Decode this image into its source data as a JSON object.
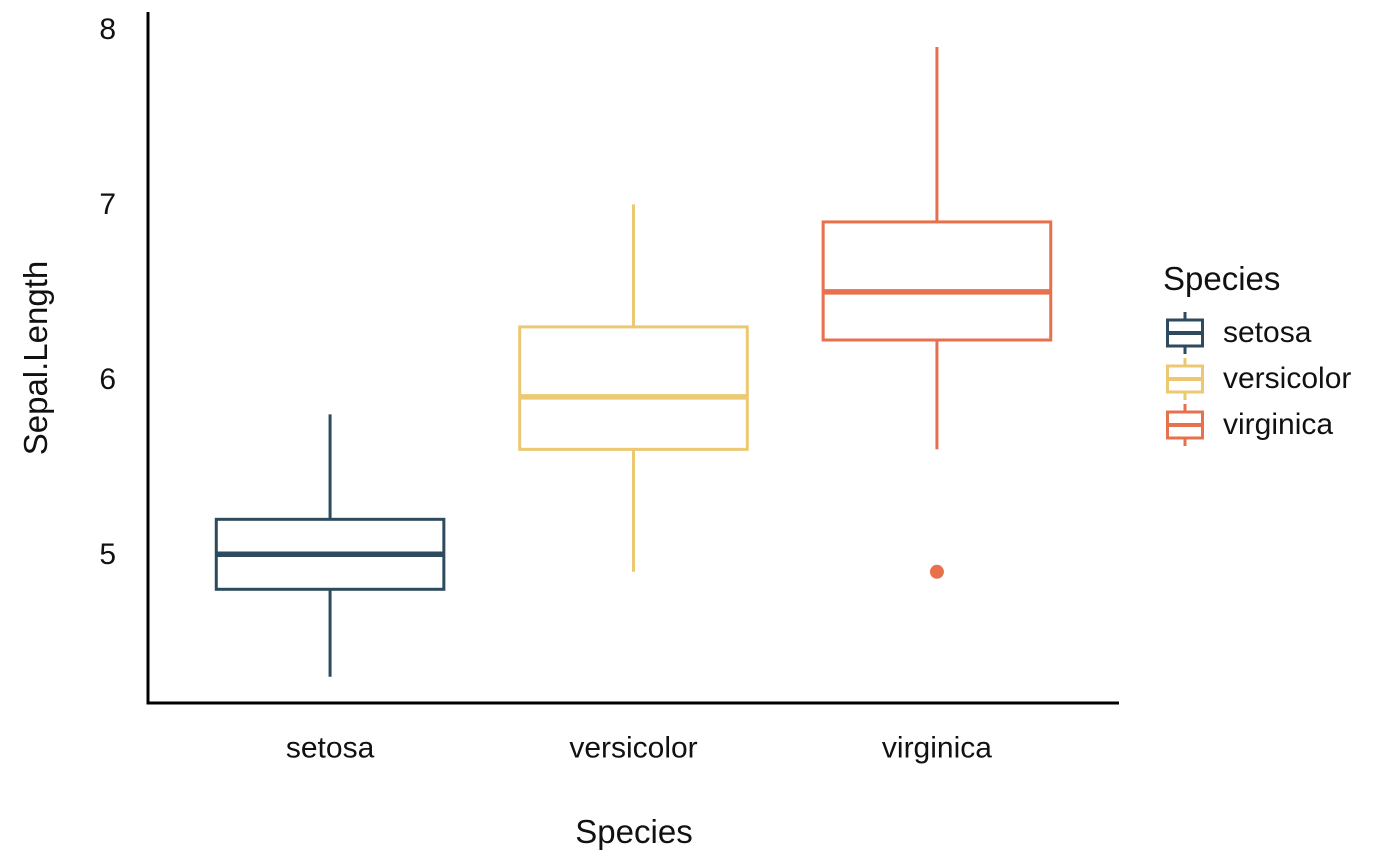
{
  "chart_data": {
    "type": "boxplot",
    "title": "",
    "xlabel": "Species",
    "ylabel": "Sepal.Length",
    "categories": [
      "setosa",
      "versicolor",
      "virginica"
    ],
    "y_ticks": [
      5,
      6,
      7,
      8
    ],
    "ylim": [
      4.15,
      8.1
    ],
    "grid": "off",
    "background": "#ffffff",
    "axis_color": "#000000",
    "text_color": "#111111",
    "box_fill": "#ffffff",
    "legend": {
      "title": "Species",
      "position": "right"
    },
    "series": [
      {
        "name": "setosa",
        "color": "#2d4a5e",
        "whisker_low": 4.3,
        "q1": 4.8,
        "median": 5.0,
        "q3": 5.2,
        "whisker_high": 5.8,
        "outliers": []
      },
      {
        "name": "versicolor",
        "color": "#ecc873",
        "whisker_low": 4.9,
        "q1": 5.6,
        "median": 5.9,
        "q3": 6.3,
        "whisker_high": 7.0,
        "outliers": []
      },
      {
        "name": "virginica",
        "color": "#e7704d",
        "whisker_low": 5.6,
        "q1": 6.225,
        "median": 6.5,
        "q3": 6.9,
        "whisker_high": 7.9,
        "outliers": [
          4.9
        ]
      }
    ]
  }
}
